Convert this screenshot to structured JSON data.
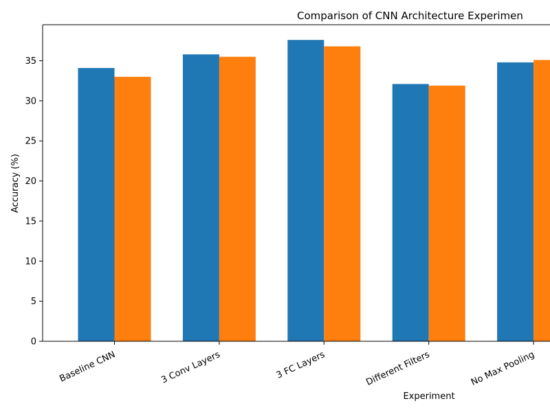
{
  "chart_data": {
    "type": "bar",
    "title": "Comparison of CNN Architecture Experimen",
    "xlabel": "Experiment",
    "ylabel": "Accuracy (%)",
    "categories": [
      "Baseline CNN",
      "3 Conv Layers",
      "3 FC Layers",
      "Different Filters",
      "No Max Pooling"
    ],
    "series": [
      {
        "values": [
          34.1,
          35.8,
          37.6,
          32.1,
          34.8
        ],
        "color": "#1f77b4"
      },
      {
        "values": [
          33.0,
          35.5,
          36.8,
          31.9,
          35.1
        ],
        "color": "#ff7f0e"
      }
    ],
    "ylim": [
      0,
      39.5
    ],
    "yticks": [
      0,
      5,
      10,
      15,
      20,
      25,
      30,
      35
    ],
    "grid": false,
    "legend": "none"
  }
}
